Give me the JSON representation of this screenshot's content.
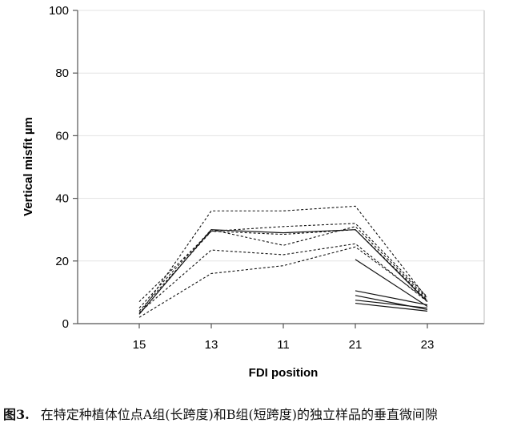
{
  "chart_data": {
    "type": "line",
    "categories": [
      "15",
      "13",
      "11",
      "21",
      "23"
    ],
    "xlabel": "FDI position",
    "ylabel": "Vertical misfit µm",
    "ylim": [
      0,
      100
    ],
    "yticks": [
      0,
      20,
      40,
      60,
      80,
      100
    ],
    "grid": "horizontal",
    "colors": {
      "line": "#111111",
      "grid": "#e3e3e3",
      "axis": "#555555"
    },
    "group_a": [
      {
        "style": "dashed",
        "values": [
          3,
          36,
          36,
          37.5,
          8
        ]
      },
      {
        "style": "dashed",
        "values": [
          7,
          29.5,
          31,
          32,
          8.5
        ]
      },
      {
        "style": "dashed",
        "values": [
          5,
          30,
          25,
          31,
          8
        ]
      },
      {
        "style": "dashed",
        "values": [
          4,
          29.5,
          28.5,
          30,
          7.5
        ]
      },
      {
        "style": "dashed",
        "values": [
          3.5,
          23.5,
          22,
          25.5,
          7
        ]
      },
      {
        "style": "dashed",
        "values": [
          2,
          16,
          18.5,
          24.5,
          7.5
        ]
      },
      {
        "style": "solid",
        "values": [
          3,
          30,
          29,
          30,
          7
        ]
      }
    ],
    "group_b": [
      {
        "style": "solid",
        "values": [
          null,
          null,
          null,
          20.5,
          5.5
        ]
      },
      {
        "style": "solid",
        "values": [
          null,
          null,
          null,
          10.5,
          6
        ]
      },
      {
        "style": "solid",
        "values": [
          null,
          null,
          null,
          9,
          4.5
        ]
      },
      {
        "style": "solid",
        "values": [
          null,
          null,
          null,
          7.5,
          5
        ]
      },
      {
        "style": "solid",
        "values": [
          null,
          null,
          null,
          6.5,
          4
        ]
      }
    ]
  },
  "caption": {
    "label": "图3.",
    "text": "在特定种植体位点A组(长跨度)和B组(短跨度)的独立样品的垂直微间隙"
  }
}
